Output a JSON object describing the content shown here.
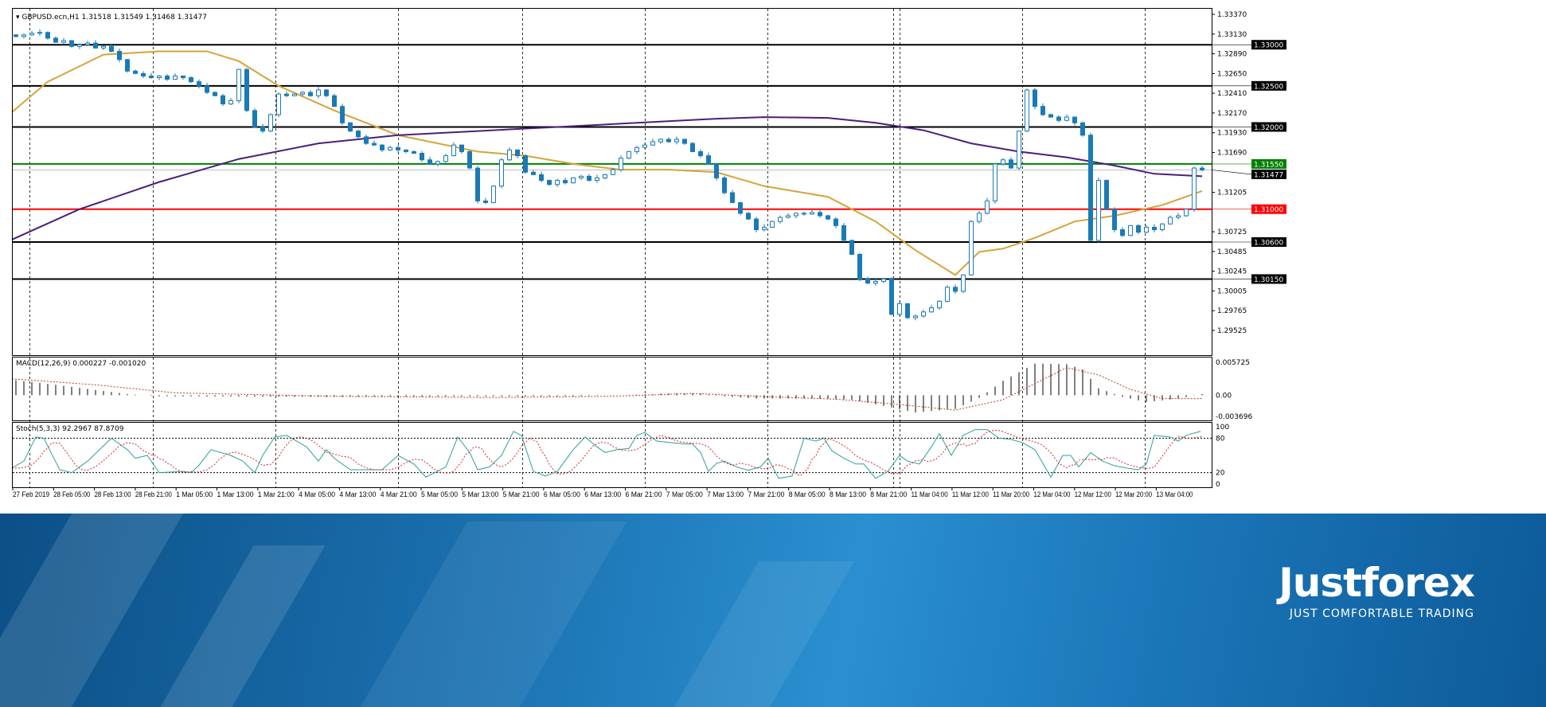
{
  "chart_data": [
    {
      "type": "candlestick",
      "title": "GBPUSD.ecn,H1",
      "ohlc_readout": "1.31518 1.31549 1.31468 1.31477",
      "ylim": [
        1.29525,
        1.3337
      ],
      "y_ticks": [
        "1.33370",
        "1.33130",
        "1.32890",
        "1.32650",
        "1.32410",
        "1.32170",
        "1.31930",
        "1.31690",
        "1.31205",
        "1.30725",
        "1.30485",
        "1.30245",
        "1.30005",
        "1.29765",
        "1.29525"
      ],
      "x_ticks": [
        "27 Feb 2019",
        "28 Feb 05:00",
        "28 Feb 13:00",
        "28 Feb 21:00",
        "1 Mar 05:00",
        "1 Mar 13:00",
        "1 Mar 21:00",
        "4 Mar 05:00",
        "4 Mar 13:00",
        "4 Mar 21:00",
        "5 Mar 05:00",
        "5 Mar 13:00",
        "5 Mar 21:00",
        "6 Mar 05:00",
        "6 Mar 13:00",
        "6 Mar 21:00",
        "7 Mar 05:00",
        "7 Mar 13:00",
        "7 Mar 21:00",
        "8 Mar 05:00",
        "8 Mar 13:00",
        "8 Mar 21:00",
        "11 Mar 04:00",
        "11 Mar 12:00",
        "11 Mar 20:00",
        "12 Mar 04:00",
        "12 Mar 12:00",
        "12 Mar 20:00",
        "13 Mar 04:00"
      ],
      "levels": [
        {
          "price": "1.33000",
          "color": "#000000"
        },
        {
          "price": "1.32500",
          "color": "#000000"
        },
        {
          "price": "1.32000",
          "color": "#000000"
        },
        {
          "price": "1.31550",
          "color": "#008000"
        },
        {
          "price": "1.31477",
          "color": "#000000",
          "current": true
        },
        {
          "price": "1.31000",
          "color": "#ff0000"
        },
        {
          "price": "1.30600",
          "color": "#000000"
        },
        {
          "price": "1.30150",
          "color": "#000000"
        }
      ],
      "closes": [
        1.331,
        1.3312,
        1.3314,
        1.3315,
        1.3308,
        1.3303,
        1.3305,
        1.3298,
        1.33,
        1.3302,
        1.3296,
        1.3298,
        1.3292,
        1.3282,
        1.3268,
        1.3265,
        1.3262,
        1.326,
        1.3262,
        1.3258,
        1.3262,
        1.326,
        1.3255,
        1.325,
        1.3242,
        1.3238,
        1.3228,
        1.3232,
        1.327,
        1.322,
        1.32,
        1.3195,
        1.3215,
        1.324,
        1.3238,
        1.324,
        1.3242,
        1.3238,
        1.3245,
        1.3238,
        1.3225,
        1.3205,
        1.3195,
        1.3188,
        1.318,
        1.3178,
        1.3172,
        1.3175,
        1.3172,
        1.317,
        1.3168,
        1.316,
        1.3155,
        1.3158,
        1.3165,
        1.3178,
        1.317,
        1.315,
        1.311,
        1.3108,
        1.3128,
        1.316,
        1.3172,
        1.3165,
        1.3145,
        1.3142,
        1.3135,
        1.313,
        1.3135,
        1.3132,
        1.3138,
        1.314,
        1.3135,
        1.3138,
        1.3142,
        1.3148,
        1.3162,
        1.317,
        1.3175,
        1.3178,
        1.3182,
        1.3185,
        1.3182,
        1.3185,
        1.318,
        1.317,
        1.3165,
        1.3155,
        1.3138,
        1.312,
        1.3108,
        1.3095,
        1.3088,
        1.3075,
        1.3078,
        1.3085,
        1.309,
        1.3092,
        1.3095,
        1.3094,
        1.3096,
        1.3092,
        1.3088,
        1.308,
        1.3062,
        1.3045,
        1.3015,
        1.301,
        1.3012,
        1.3015,
        1.2972,
        1.2985,
        1.2968,
        1.297,
        1.2975,
        1.298,
        1.2988,
        1.3005,
        1.3,
        1.302,
        1.3085,
        1.3095,
        1.311,
        1.3155,
        1.316,
        1.315,
        1.3195,
        1.3245,
        1.3225,
        1.3215,
        1.3212,
        1.3208,
        1.3212,
        1.3205,
        1.319,
        1.3062,
        1.3135,
        1.31,
        1.3075,
        1.3068,
        1.308,
        1.3072,
        1.3078,
        1.3075,
        1.3082,
        1.309,
        1.3092,
        1.31,
        1.315,
        1.31477
      ],
      "series": [
        {
          "color": "#d4a43a",
          "points": [
            [
              -0.5,
              1.3218
            ],
            [
              4,
              1.3255
            ],
            [
              11,
              1.3288
            ],
            [
              18,
              1.3292
            ],
            [
              24,
              1.3292
            ],
            [
              28,
              1.328
            ],
            [
              33,
              1.325
            ],
            [
              40,
              1.322
            ],
            [
              48,
              1.319
            ],
            [
              58,
              1.317
            ],
            [
              64,
              1.3165
            ],
            [
              70,
              1.3155
            ],
            [
              76,
              1.3148
            ],
            [
              82,
              1.3148
            ],
            [
              88,
              1.3145
            ],
            [
              94,
              1.3128
            ],
            [
              102,
              1.3115
            ],
            [
              108,
              1.3085
            ],
            [
              113,
              1.305
            ],
            [
              118,
              1.302
            ],
            [
              121,
              1.3048
            ],
            [
              124,
              1.3052
            ],
            [
              128,
              1.3065
            ],
            [
              133,
              1.3085
            ],
            [
              138,
              1.3092
            ],
            [
              144,
              1.3105
            ],
            [
              149,
              1.3122
            ]
          ]
        },
        {
          "color": "#4b1f7a",
          "points": [
            [
              -0.5,
              1.3063
            ],
            [
              8,
              1.31
            ],
            [
              18,
              1.3133
            ],
            [
              28,
              1.3161
            ],
            [
              38,
              1.318
            ],
            [
              48,
              1.319
            ],
            [
              58,
              1.3195
            ],
            [
              68,
              1.32
            ],
            [
              78,
              1.3205
            ],
            [
              88,
              1.321
            ],
            [
              94,
              1.3212
            ],
            [
              102,
              1.3211
            ],
            [
              108,
              1.3205
            ],
            [
              114,
              1.3196
            ],
            [
              120,
              1.318
            ],
            [
              126,
              1.317
            ],
            [
              132,
              1.3163
            ],
            [
              138,
              1.3153
            ],
            [
              143,
              1.3143
            ],
            [
              149,
              1.314
            ]
          ]
        }
      ]
    },
    {
      "type": "bar",
      "title": "MACD(12,26,9) 0.000227 -0.001020",
      "ylim": [
        -0.003696,
        0.005725
      ],
      "y_ticks": [
        "0.005725",
        "0.00",
        "-0.003696"
      ],
      "histogram": [
        [
          0,
          0.0026
        ],
        [
          5,
          0.0018
        ],
        [
          10,
          0.0009
        ],
        [
          14,
          0.0002
        ],
        [
          18,
          -0.0002
        ],
        [
          40,
          -0.0003
        ],
        [
          55,
          -0.0002
        ],
        [
          70,
          -0.0002
        ],
        [
          76,
          0.0
        ],
        [
          82,
          0.0003
        ],
        [
          86,
          0.0003
        ],
        [
          88,
          -0.0001
        ],
        [
          93,
          -0.0006
        ],
        [
          100,
          -0.0006
        ],
        [
          105,
          -0.0008
        ],
        [
          108,
          -0.0016
        ],
        [
          113,
          -0.003
        ],
        [
          118,
          -0.0024
        ],
        [
          121,
          -0.0005
        ],
        [
          124,
          0.0025
        ],
        [
          128,
          0.0055
        ],
        [
          132,
          0.0054
        ],
        [
          134,
          0.0045
        ],
        [
          136,
          0.0012
        ],
        [
          139,
          -0.0003
        ],
        [
          142,
          -0.0012
        ],
        [
          146,
          -0.0006
        ],
        [
          149,
          0.0002
        ]
      ],
      "signal": [
        [
          0,
          0.0028
        ],
        [
          10,
          0.0018
        ],
        [
          20,
          0.0004
        ],
        [
          40,
          -0.0002
        ],
        [
          60,
          -0.0004
        ],
        [
          75,
          -0.0002
        ],
        [
          85,
          0.0003
        ],
        [
          95,
          -0.0003
        ],
        [
          103,
          -0.0007
        ],
        [
          110,
          -0.0015
        ],
        [
          118,
          -0.0026
        ],
        [
          124,
          -0.0008
        ],
        [
          128,
          0.002
        ],
        [
          132,
          0.0048
        ],
        [
          136,
          0.0035
        ],
        [
          140,
          0.001
        ],
        [
          144,
          -0.0006
        ],
        [
          149,
          -0.0006
        ]
      ]
    },
    {
      "type": "line",
      "title": "Stoch(5,3,3) 92.2967 87.8709",
      "ylim": [
        0,
        100
      ],
      "y_ticks": [
        "100",
        "80",
        "20",
        "0"
      ],
      "main": [
        [
          -0.5,
          28
        ],
        [
          1,
          40
        ],
        [
          2.5,
          82
        ],
        [
          3.5,
          80
        ],
        [
          5.5,
          25
        ],
        [
          7,
          20
        ],
        [
          9,
          40
        ],
        [
          12,
          80
        ],
        [
          14,
          60
        ],
        [
          15,
          45
        ],
        [
          16.5,
          50
        ],
        [
          18,
          20
        ],
        [
          21,
          22
        ],
        [
          22,
          20
        ],
        [
          23,
          33
        ],
        [
          24.5,
          60
        ],
        [
          27,
          50
        ],
        [
          28.5,
          40
        ],
        [
          30,
          20
        ],
        [
          31,
          50
        ],
        [
          32.5,
          82
        ],
        [
          34,
          85
        ],
        [
          36.5,
          65
        ],
        [
          38,
          40
        ],
        [
          39,
          60
        ],
        [
          40,
          45
        ],
        [
          42,
          25
        ],
        [
          44,
          25
        ],
        [
          46,
          25
        ],
        [
          48,
          50
        ],
        [
          50,
          35
        ],
        [
          51.5,
          12
        ],
        [
          54,
          30
        ],
        [
          55.5,
          82
        ],
        [
          57,
          55
        ],
        [
          58,
          25
        ],
        [
          59.5,
          30
        ],
        [
          61,
          50
        ],
        [
          62.5,
          92
        ],
        [
          63.5,
          85
        ],
        [
          65,
          22
        ],
        [
          66.5,
          14
        ],
        [
          68,
          22
        ],
        [
          70,
          60
        ],
        [
          71.5,
          82
        ],
        [
          73,
          65
        ],
        [
          74,
          55
        ],
        [
          75.5,
          60
        ],
        [
          77,
          62
        ],
        [
          78,
          85
        ],
        [
          79,
          90
        ],
        [
          80.5,
          75
        ],
        [
          82.5,
          72
        ],
        [
          84,
          70
        ],
        [
          85,
          70
        ],
        [
          86,
          55
        ],
        [
          87,
          22
        ],
        [
          88,
          36
        ],
        [
          89,
          40
        ],
        [
          90.5,
          30
        ],
        [
          92,
          24
        ],
        [
          93.5,
          30
        ],
        [
          94.5,
          45
        ],
        [
          95.8,
          10
        ],
        [
          97.5,
          14
        ],
        [
          99,
          80
        ],
        [
          100.5,
          75
        ],
        [
          101.5,
          80
        ],
        [
          102.5,
          58
        ],
        [
          104,
          45
        ],
        [
          105.5,
          35
        ],
        [
          106.5,
          35
        ],
        [
          108,
          10
        ],
        [
          109.5,
          22
        ],
        [
          111,
          50
        ],
        [
          112,
          40
        ],
        [
          113.5,
          35
        ],
        [
          115,
          65
        ],
        [
          116,
          88
        ],
        [
          117.5,
          50
        ],
        [
          119,
          85
        ],
        [
          120.5,
          95
        ],
        [
          122,
          95
        ],
        [
          123.5,
          80
        ],
        [
          125,
          78
        ],
        [
          126.5,
          72
        ],
        [
          128,
          60
        ],
        [
          130,
          12
        ],
        [
          131.5,
          50
        ],
        [
          132.5,
          50
        ],
        [
          133.5,
          30
        ],
        [
          135,
          55
        ],
        [
          136.5,
          40
        ],
        [
          138,
          32
        ],
        [
          139.5,
          28
        ],
        [
          141,
          25
        ],
        [
          142,
          35
        ],
        [
          143,
          85
        ],
        [
          145,
          82
        ],
        [
          146,
          75
        ],
        [
          147,
          85
        ],
        [
          148.8,
          92
        ]
      ]
    }
  ],
  "branding": {
    "name": "Justforex",
    "tagline": "JUST COMFORTABLE TRADING"
  }
}
